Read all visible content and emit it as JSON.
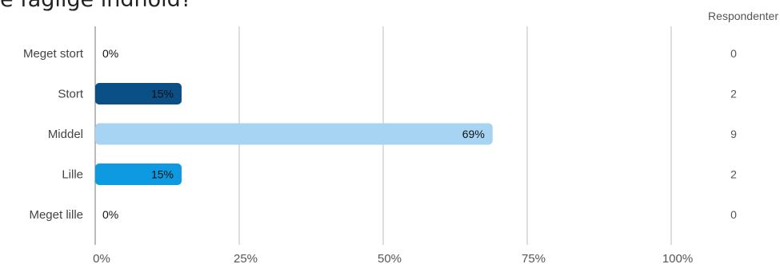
{
  "title": "e faglige indhold?",
  "respondents_header": "Respondenter",
  "colors": {
    "grid": "#bdbdbd",
    "axis": "#777777",
    "stort": "#0a4f86",
    "middel": "#a8d4f3",
    "lille": "#0d9ae0"
  },
  "chart_data": {
    "type": "bar",
    "orientation": "horizontal",
    "categories": [
      "Meget stort",
      "Stort",
      "Middel",
      "Lille",
      "Meget lille"
    ],
    "values": [
      0,
      15,
      69,
      15,
      0
    ],
    "value_labels": [
      "0%",
      "15%",
      "69%",
      "15%",
      "0%"
    ],
    "respondents": [
      0,
      2,
      9,
      2,
      0
    ],
    "bar_colors": [
      "#0a4f86",
      "#0a4f86",
      "#a8d4f3",
      "#0d9ae0",
      "#0a4f86"
    ],
    "xticks": [
      "0%",
      "25%",
      "50%",
      "75%",
      "100%"
    ],
    "xlim": [
      0,
      100
    ],
    "grid": true
  }
}
